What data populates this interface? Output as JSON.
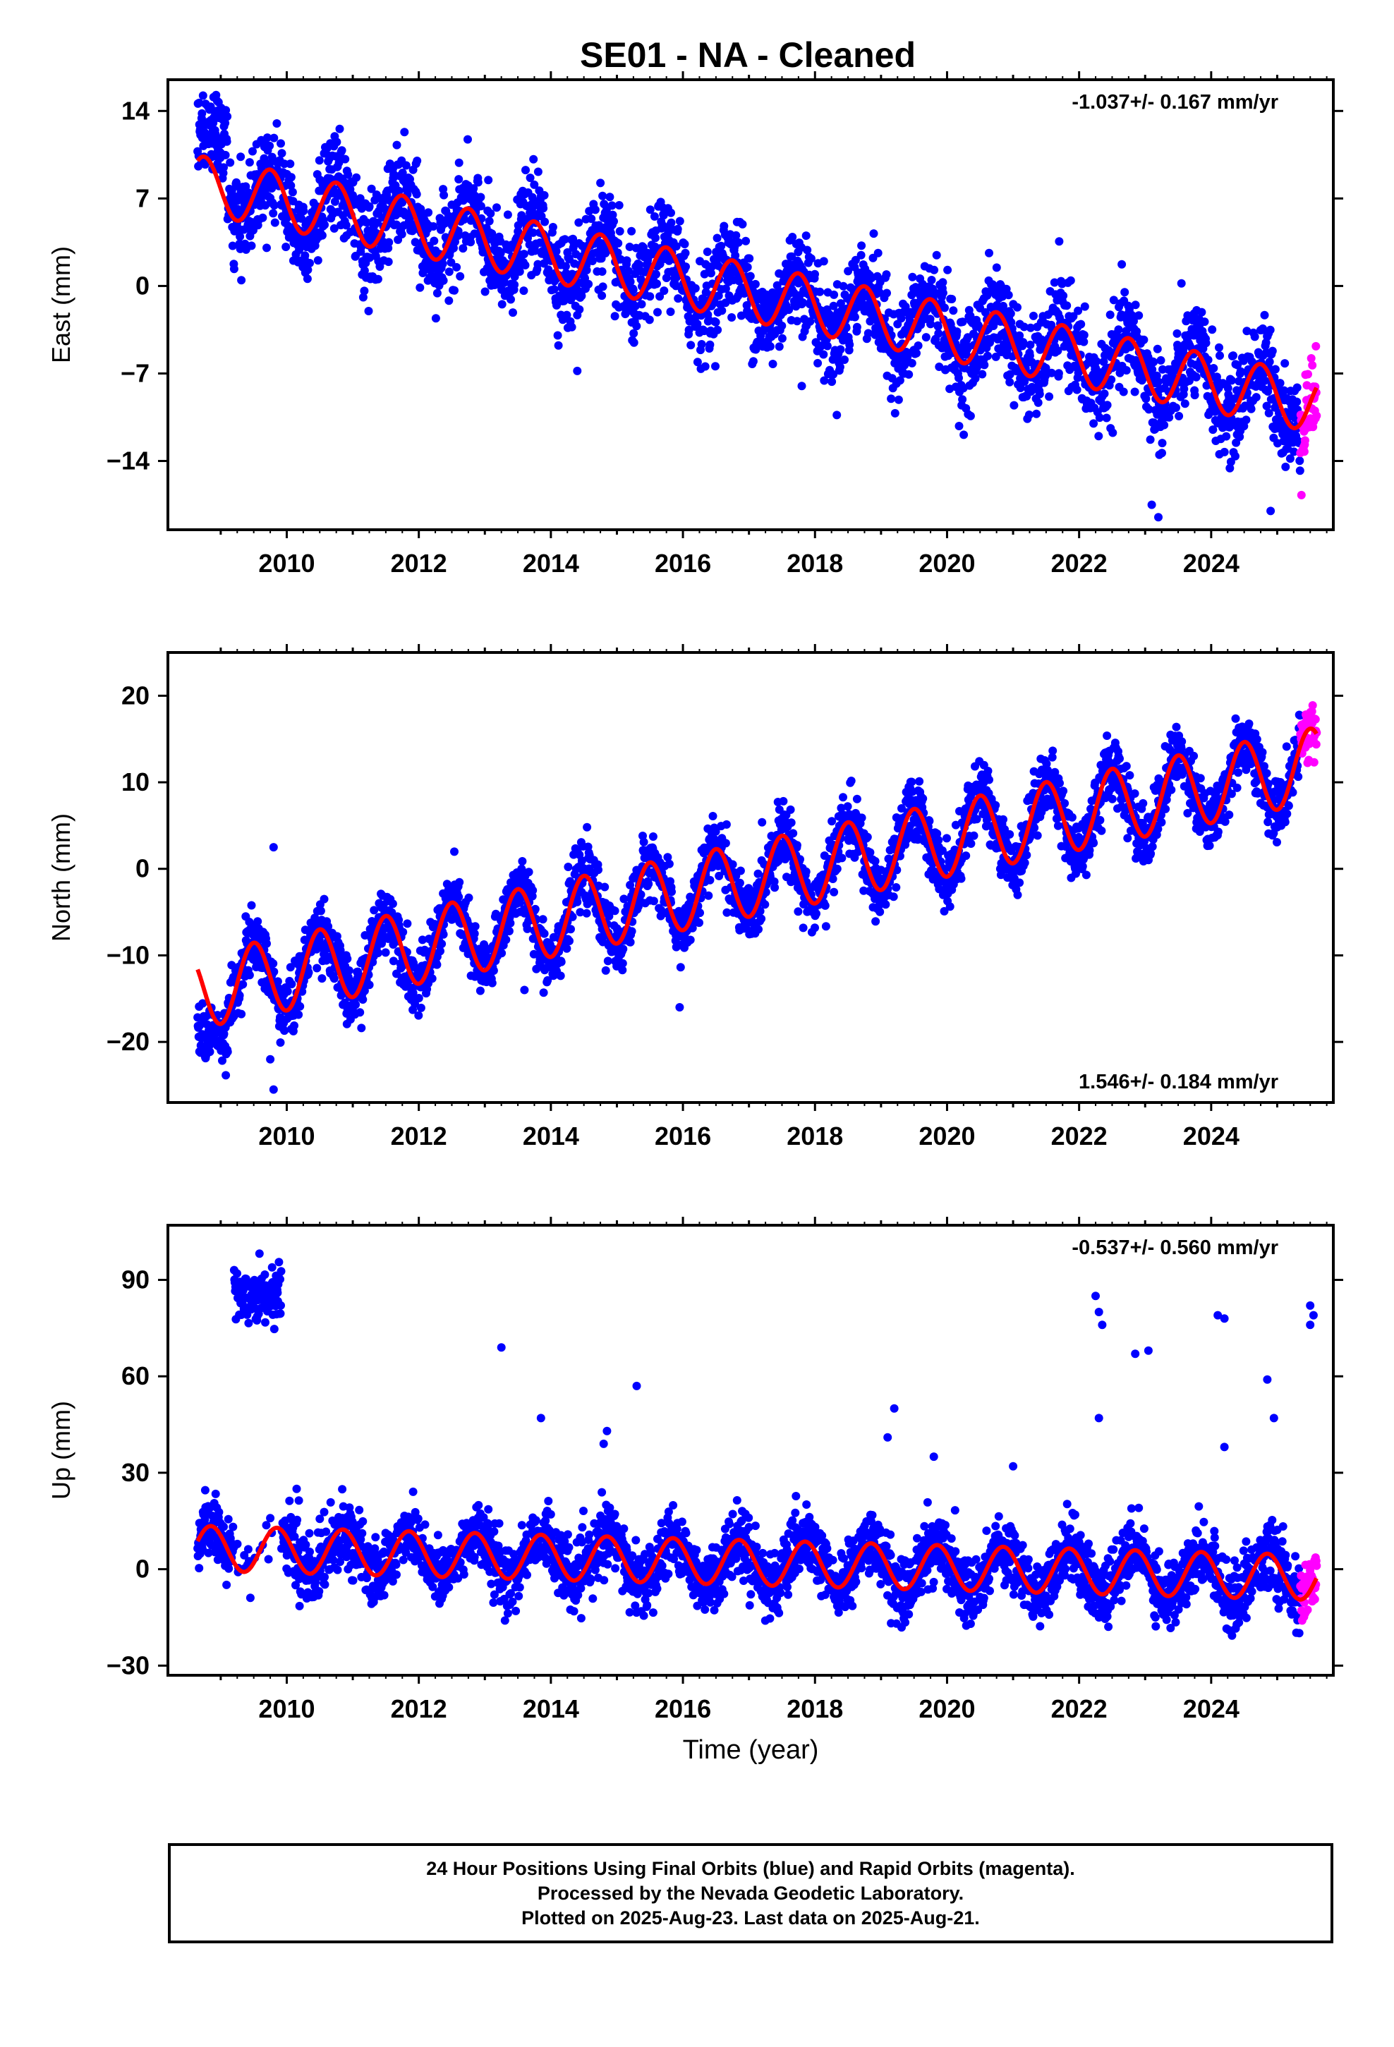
{
  "title": "SE01  - NA - Cleaned",
  "colors": {
    "final_orbits": "#0000ff",
    "rapid_orbits": "#ff00ff",
    "model": "#ff0000",
    "frame": "#000000"
  },
  "footer": {
    "line1": "24 Hour Positions Using Final Orbits (blue) and Rapid Orbits (magenta).",
    "line2": "Processed by the Nevada Geodetic Laboratory.",
    "line3": "Plotted on 2025-Aug-23. Last data on 2025-Aug-21."
  },
  "chart_data": [
    {
      "type": "scatter",
      "component": "East",
      "ylabel": "East (mm)",
      "xlabel": "",
      "rate_text": "-1.037+/- 0.167 mm/yr",
      "rate_position": "top-right",
      "xlim": [
        2008.2,
        2025.85
      ],
      "ylim": [
        -19.5,
        16.5
      ],
      "xticks": [
        2010,
        2012,
        2014,
        2016,
        2018,
        2020,
        2022,
        2024
      ],
      "yticks": [
        -14,
        -7,
        0,
        7,
        14
      ],
      "ytick_labels": [
        "−14",
        "−7",
        "0",
        "7",
        "14"
      ],
      "data_start": 2008.65,
      "data_end": 2025.6,
      "rapid_start": 2025.35,
      "trend": {
        "rate": -1.037,
        "value_at_2018": -1.55
      },
      "seasonal_amplitude": 2.3,
      "seasonal_phase_peak": 0.75,
      "scatter_sd": 1.9,
      "early_offset": {
        "until": 2009.1,
        "value": 12.0
      },
      "outliers": [
        [
          2009.85,
          13.0
        ],
        [
          2014.4,
          -6.8
        ],
        [
          2017.8,
          -8.0
        ],
        [
          2023.1,
          -17.5
        ],
        [
          2023.2,
          -18.5
        ],
        [
          2024.9,
          -18.0
        ],
        [
          2016.4,
          -5.0
        ]
      ]
    },
    {
      "type": "scatter",
      "component": "North",
      "ylabel": "North (mm)",
      "xlabel": "",
      "rate_text": "1.546+/- 0.184 mm/yr",
      "rate_position": "bottom-right",
      "xlim": [
        2008.2,
        2025.85
      ],
      "ylim": [
        -27,
        25
      ],
      "xticks": [
        2010,
        2012,
        2014,
        2016,
        2018,
        2020,
        2022,
        2024
      ],
      "yticks": [
        -20,
        -10,
        0,
        10,
        20
      ],
      "ytick_labels": [
        "−20",
        "−10",
        "0",
        "10",
        "20"
      ],
      "data_start": 2008.65,
      "data_end": 2025.6,
      "rapid_start": 2025.35,
      "trend": {
        "rate": 1.546,
        "value_at_2018": 0.3
      },
      "seasonal_amplitude": 4.3,
      "seasonal_phase_peak": 0.5,
      "scatter_sd": 1.8,
      "early_offset": {
        "until": 2009.1,
        "value": -19.0
      },
      "outliers": [
        [
          2009.8,
          2.5
        ],
        [
          2009.8,
          -25.5
        ],
        [
          2013.6,
          -14.0
        ],
        [
          2015.95,
          -16.0
        ],
        [
          2009.75,
          -22.0
        ]
      ]
    },
    {
      "type": "scatter",
      "component": "Up",
      "ylabel": "Up (mm)",
      "xlabel": "Time (year)",
      "rate_text": "-0.537+/- 0.560 mm/yr",
      "rate_position": "top-right",
      "xlim": [
        2008.2,
        2025.85
      ],
      "ylim": [
        -33,
        107
      ],
      "xticks": [
        2010,
        2012,
        2014,
        2016,
        2018,
        2020,
        2022,
        2024
      ],
      "yticks": [
        -30,
        0,
        30,
        60,
        90
      ],
      "ytick_labels": [
        "−30",
        "0",
        "30",
        "60",
        "90"
      ],
      "data_start": 2008.65,
      "data_end": 2025.6,
      "rapid_start": 2025.35,
      "trend": {
        "rate": -0.537,
        "value_at_2018": 1.5
      },
      "seasonal_amplitude": 7.0,
      "seasonal_phase_peak": 0.85,
      "scatter_sd": 5.0,
      "snow_cluster": {
        "from": 2009.2,
        "to": 2009.92,
        "center": 85,
        "spread": 7
      },
      "outliers": [
        [
          2013.25,
          69
        ],
        [
          2013.85,
          47
        ],
        [
          2015.3,
          57
        ],
        [
          2019.2,
          50
        ],
        [
          2019.1,
          41
        ],
        [
          2021.0,
          32
        ],
        [
          2022.25,
          85
        ],
        [
          2022.3,
          80
        ],
        [
          2022.35,
          76
        ],
        [
          2022.3,
          47
        ],
        [
          2022.85,
          67
        ],
        [
          2023.05,
          68
        ],
        [
          2024.1,
          79
        ],
        [
          2024.2,
          78
        ],
        [
          2024.2,
          38
        ],
        [
          2024.85,
          59
        ],
        [
          2024.95,
          47
        ],
        [
          2025.5,
          82
        ],
        [
          2025.55,
          79
        ],
        [
          2025.5,
          76
        ],
        [
          2014.85,
          43
        ],
        [
          2014.8,
          39
        ],
        [
          2019.8,
          35
        ]
      ]
    }
  ]
}
